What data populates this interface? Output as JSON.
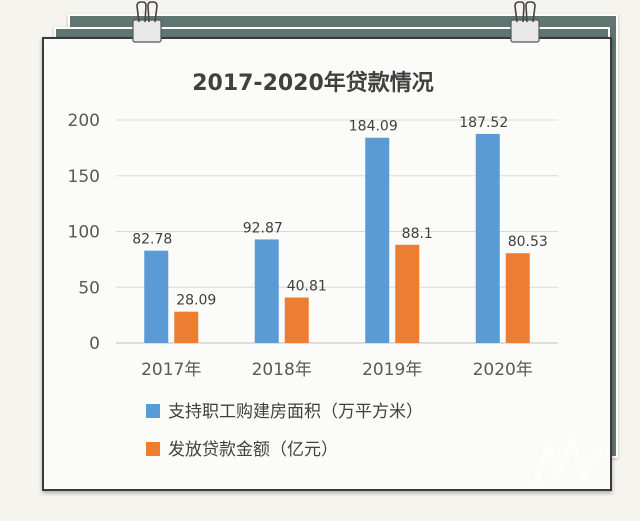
{
  "chart_data": {
    "type": "bar",
    "title": "2017-2020年贷款情况",
    "categories": [
      "2017年",
      "2018年",
      "2019年",
      "2020年"
    ],
    "series": [
      {
        "name": "支持职工购建房面积（万平方米）",
        "values": [
          82.78,
          92.87,
          184.09,
          187.52
        ],
        "color": "#5b9bd5"
      },
      {
        "name": "发放贷款金额（亿元）",
        "values": [
          28.09,
          40.81,
          88.1,
          80.53
        ],
        "color": "#ed7d31"
      }
    ],
    "ylim": [
      0,
      200
    ],
    "yticks": [
      0,
      50,
      100,
      150,
      200
    ],
    "grid": true,
    "legend_position": "bottom"
  }
}
